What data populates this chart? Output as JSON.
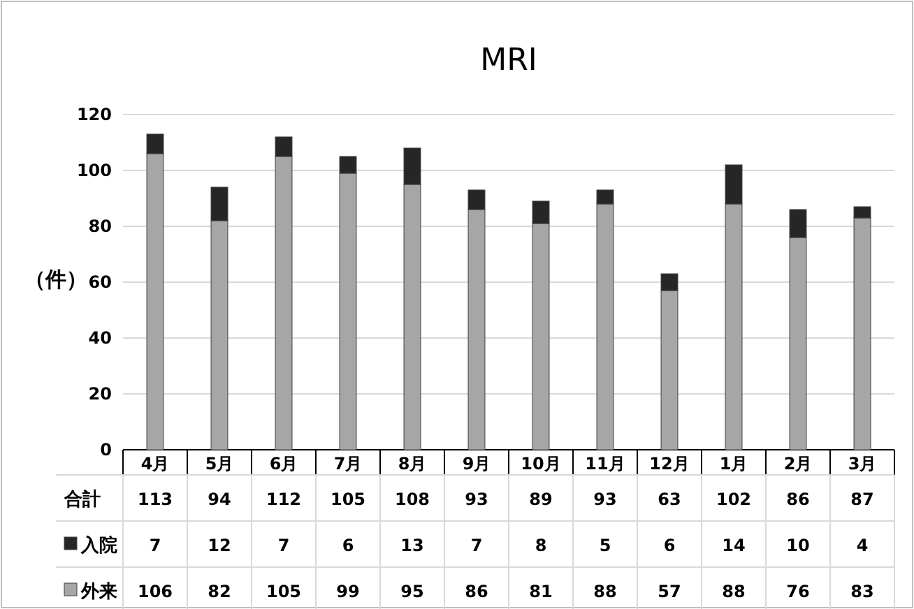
{
  "chart_data": {
    "type": "bar",
    "title": "MRI",
    "ylabel": "（件）",
    "stacked": true,
    "categories": [
      "4月",
      "5月",
      "6月",
      "7月",
      "8月",
      "9月",
      "10月",
      "11月",
      "12月",
      "1月",
      "2月",
      "3月"
    ],
    "series": [
      {
        "name": "外来",
        "color": "#a6a6a6",
        "values": [
          106,
          82,
          105,
          99,
          95,
          86,
          81,
          88,
          57,
          88,
          76,
          83
        ]
      },
      {
        "name": "入院",
        "color": "#262626",
        "values": [
          7,
          12,
          7,
          6,
          13,
          7,
          8,
          5,
          6,
          14,
          10,
          4
        ]
      }
    ],
    "annotations": [
      "合計"
    ],
    "totals": [
      "113",
      "94",
      "112",
      "105",
      "108",
      "93",
      "89",
      "93",
      "63",
      "102",
      "86",
      "87"
    ],
    "ylim": [
      0,
      120
    ],
    "yticks": [
      0,
      20,
      40,
      60,
      80,
      100,
      120
    ],
    "grid": "y",
    "data_labels": true,
    "legend": "bottom"
  }
}
